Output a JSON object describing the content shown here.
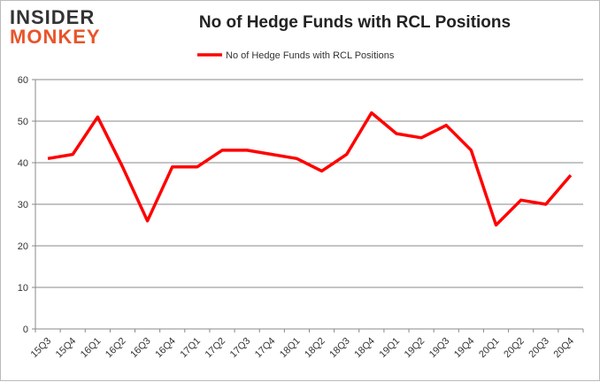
{
  "logo": {
    "line1": "INSIDER",
    "line2": "MONKEY"
  },
  "chart_data": {
    "type": "line",
    "title": "No of Hedge Funds with RCL Positions",
    "legend": {
      "entries": [
        "No of Hedge Funds with RCL Positions"
      ],
      "placement": "top"
    },
    "categories": [
      "15Q3",
      "15Q4",
      "16Q1",
      "16Q2",
      "16Q3",
      "16Q4",
      "17Q1",
      "17Q2",
      "17Q3",
      "17Q4",
      "18Q1",
      "18Q2",
      "18Q3",
      "18Q4",
      "19Q1",
      "19Q2",
      "19Q3",
      "19Q4",
      "20Q1",
      "20Q2",
      "20Q3",
      "20Q4"
    ],
    "series": [
      {
        "name": "No of Hedge Funds with RCL Positions",
        "color": "#ff0000",
        "values": [
          41,
          42,
          51,
          39,
          26,
          39,
          39,
          43,
          43,
          42,
          41,
          38,
          42,
          52,
          47,
          46,
          49,
          43,
          25,
          31,
          30,
          37
        ]
      }
    ],
    "ylim": [
      0,
      60
    ],
    "yticks": [
      0,
      10,
      20,
      30,
      40,
      50,
      60
    ],
    "grid": true
  }
}
